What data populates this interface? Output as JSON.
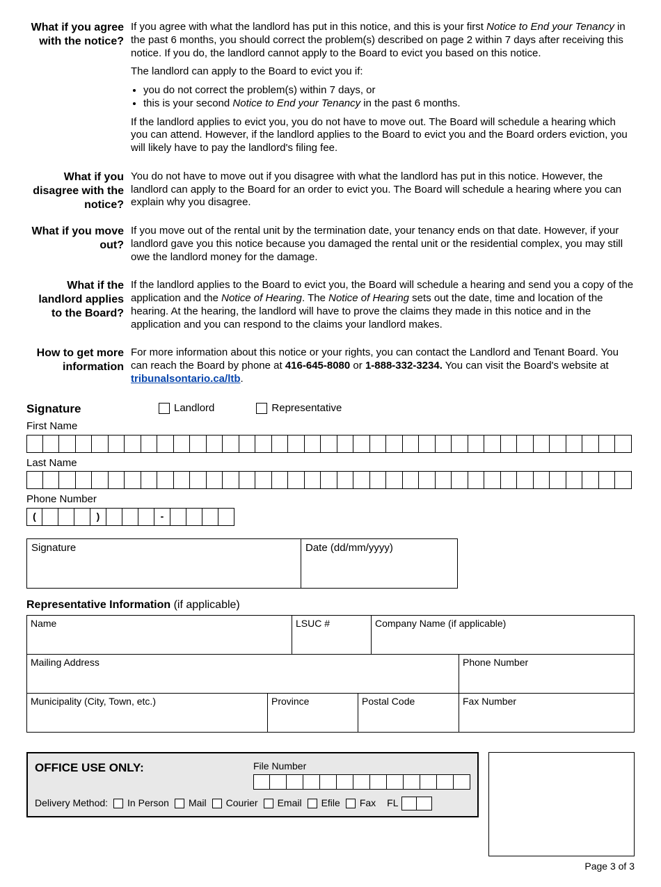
{
  "sections": {
    "agree": {
      "heading": "What if you agree with the notice?",
      "p1_a": "If you agree with what the landlord has put in this notice, and this is your first ",
      "p1_em": "Notice to End your Tenancy",
      "p1_b": " in the past 6 months, you should correct the problem(s) described on page 2 within 7 days after receiving this notice. If you do, the landlord cannot apply to the Board to evict you based on this notice.",
      "p2": "The landlord can apply to the Board to evict you if:",
      "b1": "you do not correct the problem(s) within 7 days, or",
      "b2_a": "this is your second ",
      "b2_em": "Notice to End your Tenancy",
      "b2_b": " in the past 6 months.",
      "p3": "If the landlord applies to evict you, you do not have to move out. The Board will schedule a hearing which you can attend. However, if the landlord applies to the Board to evict you and the Board orders eviction, you will likely have to pay the landlord's filing fee."
    },
    "disagree": {
      "heading": "What if you disagree with the notice?",
      "p": "You do not have to move out if you disagree with what the landlord has put in this notice. However, the landlord can apply to the Board for an order to evict you. The Board will schedule a hearing where you can explain why you disagree."
    },
    "moveout": {
      "heading": "What if you move out?",
      "p": "If you move out of the rental unit by the termination date, your tenancy ends on that date. However, if your landlord gave you this notice because you damaged the rental unit or the residential complex, you may still owe the landlord money for the damage."
    },
    "applies": {
      "heading": "What if the landlord applies to the Board?",
      "p_a": "If the landlord applies to the Board to evict you, the Board will schedule a hearing and send you a copy of the application and the ",
      "p_em1": "Notice of Hearing",
      "p_b": ". The ",
      "p_em2": "Notice of Hearing",
      "p_c": " sets out the date, time and location of the hearing. At the hearing, the landlord will have to prove the claims they made in this notice and in the application and you can respond to the claims your landlord makes."
    },
    "info": {
      "heading": "How to get more information",
      "p_a": "For more information about this notice or your rights, you can contact the Landlord and Tenant Board. You can reach the Board by phone at ",
      "phone1": "416-645-8080",
      "p_b": " or ",
      "phone2": "1-888-332-3234.",
      "p_c": " You can visit the Board's website at ",
      "link": "tribunalsontario.ca/ltb",
      "p_d": "."
    }
  },
  "signature": {
    "title": "Signature",
    "landlord": "Landlord",
    "representative": "Representative",
    "first_name": "First Name",
    "last_name": "Last Name",
    "phone": "Phone Number",
    "sig_label": "Signature",
    "date_label": "Date (dd/mm/yyyy)",
    "phone_open": "(",
    "phone_close": ")",
    "phone_dash": "-"
  },
  "rep": {
    "title_bold": "Representative Information",
    "title_rest": " (if applicable)",
    "name": "Name",
    "lsuc": "LSUC #",
    "company": "Company Name (if applicable)",
    "mailing": "Mailing Address",
    "phone": "Phone Number",
    "municipality": "Municipality (City, Town, etc.)",
    "province": "Province",
    "postal": "Postal Code",
    "fax": "Fax Number"
  },
  "office": {
    "title": "OFFICE USE ONLY:",
    "file_number": "File Number",
    "delivery": "Delivery Method:",
    "in_person": "In Person",
    "mail": "Mail",
    "courier": "Courier",
    "email": "Email",
    "efile": "Efile",
    "fax": "Fax",
    "fl": "FL"
  },
  "footer": "Page 3 of 3",
  "layout": {
    "name_cells": 37,
    "phone_area_cells": 3,
    "phone_mid_cells": 3,
    "phone_end_cells": 4,
    "file_cells": 13,
    "fl_cells": 2,
    "cell_w": 23.5,
    "phone_cell_w": 23,
    "file_cell_w": 24,
    "sig_w": 395,
    "date_w": 225,
    "rep_name_w": 380,
    "rep_lsuc_w": 114,
    "rep_company_w": 376,
    "rep_mail_w": 620,
    "rep_phone_w": 250,
    "rep_muni_w": 345,
    "rep_prov_w": 130,
    "rep_postal_w": 145,
    "rep_fax_w": 250
  }
}
